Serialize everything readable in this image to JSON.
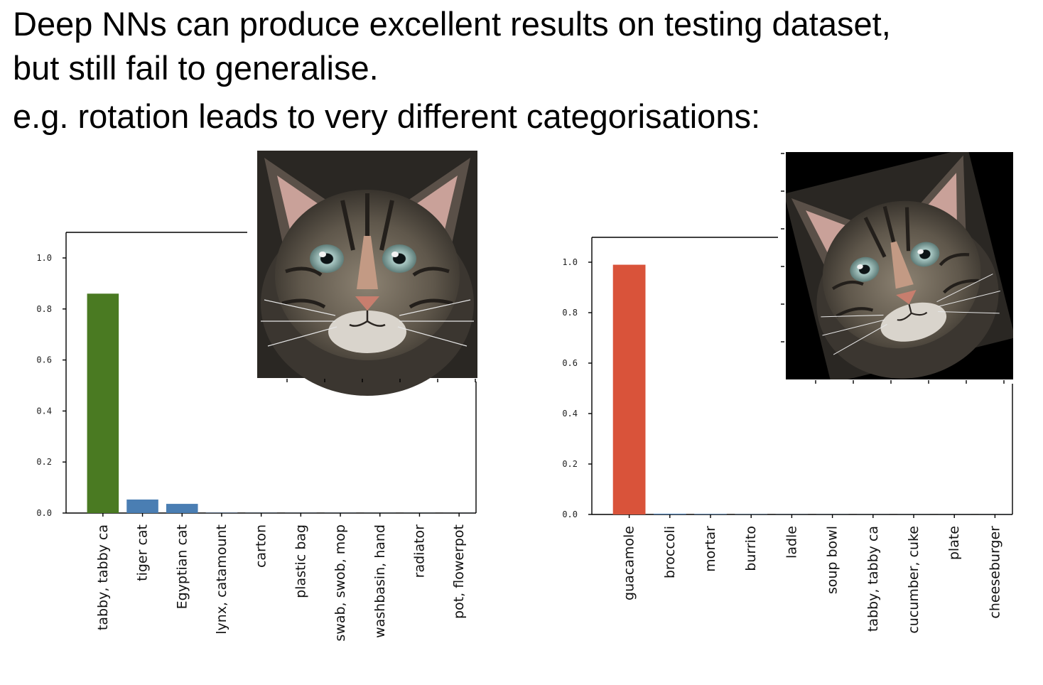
{
  "slide": {
    "line1": "Deep NNs can produce excellent results on testing dataset,",
    "line2": "but still fail to generalise.",
    "line3": "e.g. rotation leads to very different categorisations:"
  },
  "images": {
    "left": "cat-face-photo",
    "right": "rotated-cat-face-photo"
  },
  "chart_data": [
    {
      "type": "bar",
      "title": "",
      "xlabel": "",
      "ylabel": "",
      "ylim": [
        0,
        1.1
      ],
      "yticks": [
        "0.0",
        "0.2",
        "0.4",
        "0.6",
        "0.8",
        "1.0"
      ],
      "grid": false,
      "categories": [
        "tabby, tabby ca",
        "tiger cat",
        "Egyptian cat",
        "lynx, catamount",
        "carton",
        "plastic bag",
        "swab, swob, mop",
        "washbasin, hand",
        "radiator",
        "pot, flowerpot"
      ],
      "values": [
        0.86,
        0.053,
        0.036,
        0.001,
        0.0005,
        0.0004,
        0.0004,
        0.0003,
        0.0003,
        0.0002
      ],
      "colors": [
        "#4a7a22",
        "#4a7eb3",
        "#4a7eb3",
        "#4a7eb3",
        "#4a7eb3",
        "#4a7eb3",
        "#4a7eb3",
        "#4a7eb3",
        "#4a7eb3",
        "#4a7eb3"
      ]
    },
    {
      "type": "bar",
      "title": "",
      "xlabel": "",
      "ylabel": "",
      "ylim": [
        0,
        1.1
      ],
      "yticks": [
        "0.0",
        "0.2",
        "0.4",
        "0.6",
        "0.8",
        "1.0"
      ],
      "grid": false,
      "categories": [
        "guacamole",
        "broccoli",
        "mortar",
        "burrito",
        "ladle",
        "soup bowl",
        "tabby, tabby ca",
        "cucumber, cuke",
        "plate",
        "cheeseburger"
      ],
      "values": [
        0.99,
        0.003,
        0.002,
        0.001,
        0.0005,
        0.0004,
        0.0003,
        0.0003,
        0.0002,
        0.0002
      ],
      "colors": [
        "#d9533a",
        "#4a7eb3",
        "#4a7eb3",
        "#4a7eb3",
        "#4a7eb3",
        "#4a7eb3",
        "#4a7eb3",
        "#4a7eb3",
        "#4a7eb3",
        "#4a7eb3"
      ]
    }
  ]
}
